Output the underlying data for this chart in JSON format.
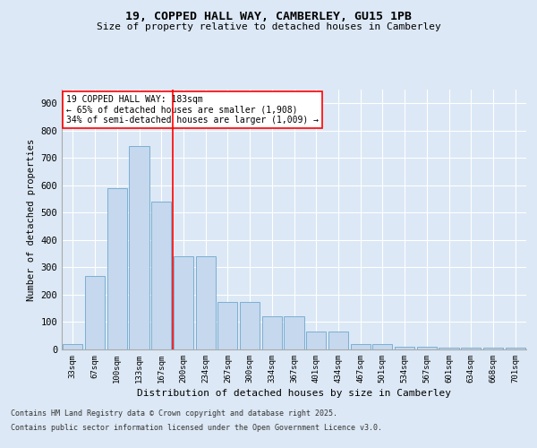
{
  "title1": "19, COPPED HALL WAY, CAMBERLEY, GU15 1PB",
  "title2": "Size of property relative to detached houses in Camberley",
  "xlabel": "Distribution of detached houses by size in Camberley",
  "ylabel": "Number of detached properties",
  "categories": [
    "33sqm",
    "67sqm",
    "100sqm",
    "133sqm",
    "167sqm",
    "200sqm",
    "234sqm",
    "267sqm",
    "300sqm",
    "334sqm",
    "367sqm",
    "401sqm",
    "434sqm",
    "467sqm",
    "501sqm",
    "534sqm",
    "567sqm",
    "601sqm",
    "634sqm",
    "668sqm",
    "701sqm"
  ],
  "values": [
    20,
    270,
    590,
    745,
    540,
    340,
    340,
    175,
    175,
    120,
    120,
    65,
    65,
    20,
    20,
    10,
    10,
    5,
    5,
    5,
    5
  ],
  "bar_color": "#c5d8ed",
  "bar_edge_color": "#7aafd4",
  "red_line_x": 4.5,
  "annotation_text": "19 COPPED HALL WAY: 183sqm\n← 65% of detached houses are smaller (1,908)\n34% of semi-detached houses are larger (1,009) →",
  "ylim": [
    0,
    950
  ],
  "yticks": [
    0,
    100,
    200,
    300,
    400,
    500,
    600,
    700,
    800,
    900
  ],
  "footer1": "Contains HM Land Registry data © Crown copyright and database right 2025.",
  "footer2": "Contains public sector information licensed under the Open Government Licence v3.0.",
  "background_color": "#dce8f5",
  "plot_bg_color": "#dce8f5"
}
